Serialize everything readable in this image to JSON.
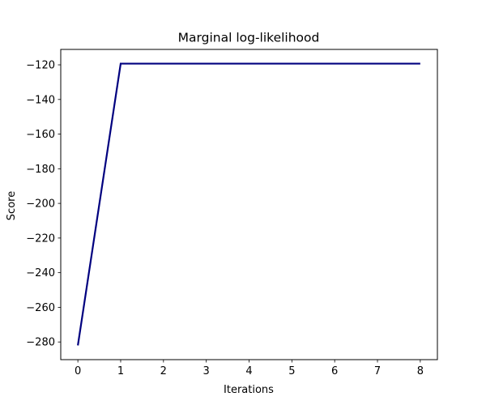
{
  "chart_data": {
    "type": "line",
    "title": "Marginal log-likelihood",
    "xlabel": "Iterations",
    "ylabel": "Score",
    "x": [
      0,
      1,
      2,
      3,
      4,
      5,
      6,
      7,
      8
    ],
    "series": [
      {
        "values": [
          -282,
          -119.3,
          -119.3,
          -119.3,
          -119.3,
          -119.3,
          -119.3,
          -119.3,
          -119.3
        ],
        "color": "#00007f"
      }
    ],
    "xlim": [
      -0.4,
      8.4
    ],
    "ylim": [
      -290.2,
      -111.1
    ],
    "xticks": [
      "0",
      "1",
      "2",
      "3",
      "4",
      "5",
      "6",
      "7",
      "8"
    ],
    "yticks": [
      {
        "value": -120,
        "label": "−120"
      },
      {
        "value": -140,
        "label": "−140"
      },
      {
        "value": -160,
        "label": "−160"
      },
      {
        "value": -180,
        "label": "−180"
      },
      {
        "value": -200,
        "label": "−200"
      },
      {
        "value": -220,
        "label": "−220"
      },
      {
        "value": -240,
        "label": "−240"
      },
      {
        "value": -260,
        "label": "−260"
      },
      {
        "value": -280,
        "label": "−280"
      }
    ],
    "grid": false,
    "legend": null
  }
}
